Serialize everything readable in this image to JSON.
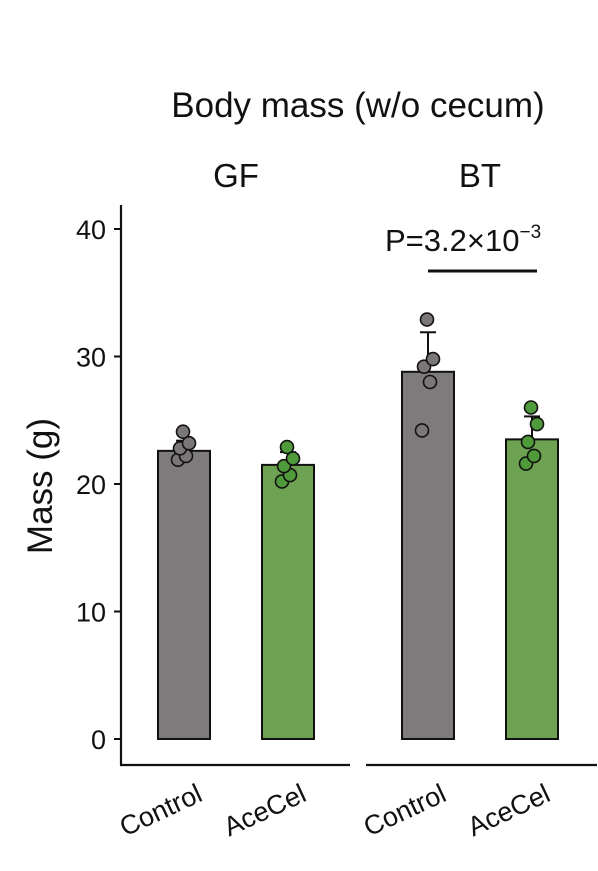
{
  "chart_data": {
    "type": "bar",
    "title": "Body mass (w/o cecum)",
    "ylabel": "Mass (g)",
    "ylim": [
      0,
      42
    ],
    "yticks": [
      "0",
      "10",
      "20",
      "30",
      "40"
    ],
    "grid": false,
    "panels": [
      {
        "name": "GF",
        "bars": [
          {
            "category": "Control",
            "value": 22.6,
            "error": 0.8,
            "color": "#7f7b7d",
            "points": [
              21.9,
              22.2,
              22.8,
              23.2,
              24.1
            ]
          },
          {
            "category": "AceCel",
            "value": 21.5,
            "error": 1.0,
            "color": "#6da253",
            "points": [
              20.2,
              20.7,
              21.4,
              22.0,
              22.9
            ]
          }
        ]
      },
      {
        "name": "BT",
        "annotation": {
          "prefix": "P=3.2×10",
          "exponent": "−3"
        },
        "bars": [
          {
            "category": "Control",
            "value": 28.8,
            "error": 3.1,
            "color": "#7f7b7d",
            "points": [
              24.2,
              28.0,
              29.2,
              29.8,
              32.9
            ]
          },
          {
            "category": "AceCel",
            "value": 23.5,
            "error": 1.8,
            "color": "#6da253",
            "points": [
              21.6,
              22.2,
              23.3,
              24.7,
              26.0
            ]
          }
        ]
      }
    ]
  }
}
